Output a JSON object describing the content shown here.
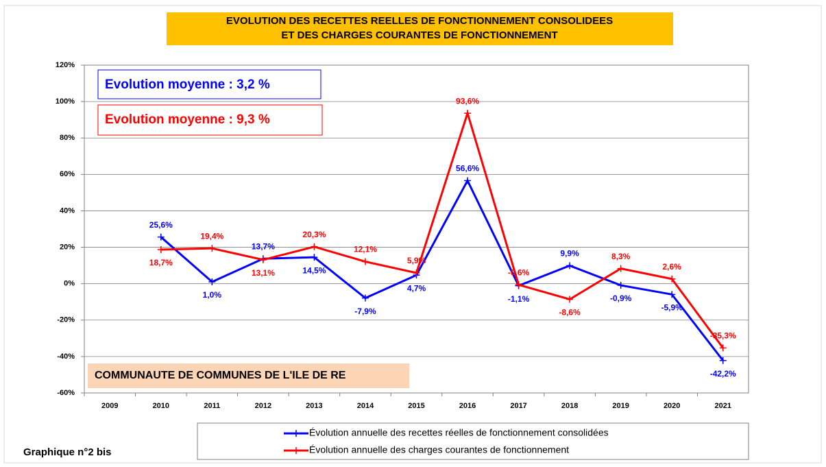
{
  "chart_data": {
    "type": "line",
    "title": [
      "EVOLUTION DES RECETTES REELLES DE FONCTIONNEMENT CONSOLIDEES",
      "ET DES CHARGES COURANTES DE FONCTIONNEMENT"
    ],
    "title_background": "#ffc000",
    "annotations": [
      {
        "text": "Evolution moyenne : 3,2 %",
        "color": "#0000ff"
      },
      {
        "text": "Evolution moyenne : 9,3 %",
        "color": "#ff0000"
      },
      {
        "text": "COMMUNAUTE DE COMMUNES DE L'ILE DE RE",
        "color": "#fbd5b5"
      }
    ],
    "footnote": "Graphique n°2 bis",
    "categories": [
      "2009",
      "2010",
      "2011",
      "2012",
      "2013",
      "2014",
      "2015",
      "2016",
      "2017",
      "2018",
      "2019",
      "2020",
      "2021"
    ],
    "series": [
      {
        "name": "Évolution annuelle des recettes réelles de fonctionnement consolidées",
        "color": "#0000ff",
        "values": [
          null,
          25.6,
          1.0,
          13.7,
          14.5,
          -7.9,
          4.7,
          56.6,
          -1.1,
          9.9,
          -0.9,
          -5.9,
          -42.2
        ],
        "value_labels": [
          null,
          "25,6%",
          "1,0%",
          "13,7%",
          "14,5%",
          "-7,9%",
          "4,7%",
          "56,6%",
          "-1,1%",
          "9,9%",
          "-0,9%",
          "-5,9%",
          "-42,2%"
        ]
      },
      {
        "name": "Évolution annuelle des charges courantes de fonctionnement",
        "color": "#ff0000",
        "values": [
          null,
          18.7,
          19.4,
          13.1,
          20.3,
          12.1,
          5.9,
          93.6,
          -0.6,
          -8.6,
          8.3,
          2.6,
          -35.3
        ],
        "value_labels": [
          null,
          "18,7%",
          "19,4%",
          "13,1%",
          "20,3%",
          "12,1%",
          "5,9%",
          "93,6%",
          "-0,6%",
          "-8,6%",
          "8,3%",
          "2,6%",
          "-35,3%"
        ]
      }
    ],
    "ylim": [
      -60,
      120
    ],
    "yticks": [
      {
        "value": -60,
        "label": "-60%"
      },
      {
        "value": -40,
        "label": "-40%"
      },
      {
        "value": -20,
        "label": "-20%"
      },
      {
        "value": 0,
        "label": "0%"
      },
      {
        "value": 20,
        "label": "20%"
      },
      {
        "value": 40,
        "label": "40%"
      },
      {
        "value": 60,
        "label": "60%"
      },
      {
        "value": 80,
        "label": "80%"
      },
      {
        "value": 100,
        "label": "100%"
      },
      {
        "value": 120,
        "label": "120%"
      }
    ],
    "grid": true,
    "legend": "bottom"
  }
}
